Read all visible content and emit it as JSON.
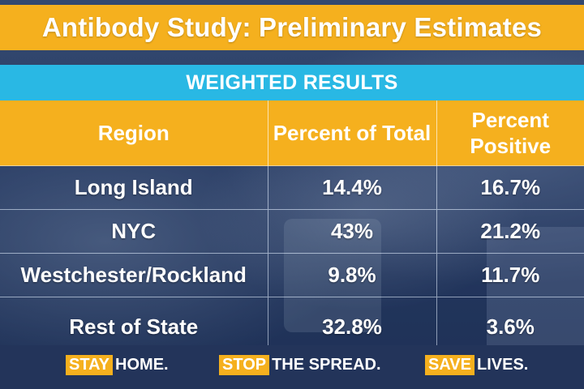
{
  "title": "Antibody Study: Preliminary Estimates",
  "subtitle": "WEIGHTED RESULTS",
  "table": {
    "headers": [
      "Region",
      "Percent of Total",
      "Percent Positive"
    ],
    "rows": [
      [
        "Long Island",
        "14.4%",
        "16.7%"
      ],
      [
        "NYC",
        "43%",
        "21.2%"
      ],
      [
        "Westchester/Rockland",
        "9.8%",
        "11.7%"
      ],
      [
        "Rest of State",
        "32.8%",
        "3.6%"
      ]
    ]
  },
  "footer": {
    "slogans": [
      {
        "highlight": "STAY",
        "rest": "HOME."
      },
      {
        "highlight": "STOP",
        "rest": "THE SPREAD."
      },
      {
        "highlight": "SAVE",
        "rest": "LIVES."
      }
    ]
  },
  "colors": {
    "title_bar": "#f5b01e",
    "subtitle_bar": "#29b8e4",
    "background": "#2b3f63"
  }
}
